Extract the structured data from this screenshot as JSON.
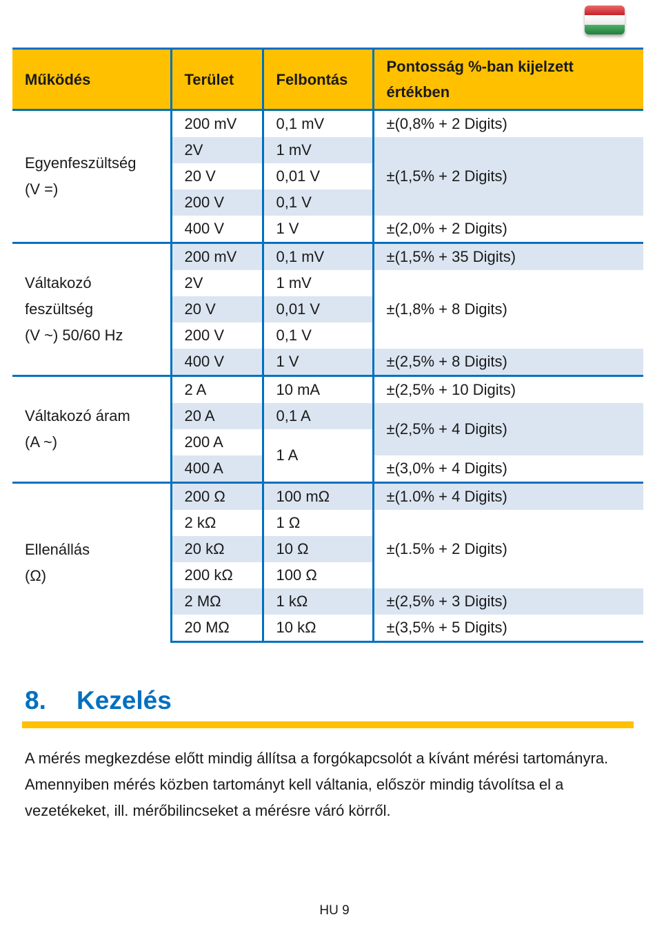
{
  "flag_icon": "hungarian-flag-icon",
  "colors": {
    "header": "#ffc000",
    "border": "#0070c0",
    "shade": "#dbe5f1",
    "heading": "#0070c0"
  },
  "table": {
    "headers": [
      "Működés",
      "Terület",
      "Felbontás",
      "Pontosság %-ban kijelzett értékben"
    ],
    "groups": [
      {
        "function": [
          "Egyenfeszültség",
          "(V =)"
        ],
        "ranges": [
          "200 mV",
          "2V",
          "20 V",
          "200 V",
          "400 V"
        ],
        "resolutions": [
          "0,1 mV",
          "1 mV",
          "0,01 V",
          "0,1 V",
          "1 V"
        ],
        "accuracies": [
          "±(0,8% + 2 Digits)",
          "±(1,5% + 2 Digits)",
          "±(2,0% + 2 Digits)"
        ]
      },
      {
        "function": [
          "Váltakozó",
          "feszültség",
          "(V  ~) 50/60 Hz"
        ],
        "ranges": [
          "200 mV",
          "2V",
          "20 V",
          "200 V",
          "400 V"
        ],
        "resolutions": [
          "0,1 mV",
          "1 mV",
          "0,01 V",
          "0,1 V",
          "1 V"
        ],
        "accuracies": [
          "±(1,5% + 35 Digits)",
          "±(1,8% + 8 Digits)",
          "±(2,5% + 8 Digits)"
        ]
      },
      {
        "function": [
          "Váltakozó áram",
          "(A ~)"
        ],
        "ranges": [
          "2 A",
          "20 A",
          "200 A",
          "400 A"
        ],
        "resolutions": [
          "10 mA",
          "0,1 A",
          "1 A"
        ],
        "accuracies": [
          "±(2,5% + 10 Digits)",
          "±(2,5% + 4 Digits)",
          "±(3,0% + 4 Digits)"
        ]
      },
      {
        "function": [
          "Ellenállás",
          "(Ω)"
        ],
        "ranges": [
          "200 Ω",
          "2 kΩ",
          "20 kΩ",
          "200 kΩ",
          "2 MΩ",
          "20 MΩ"
        ],
        "resolutions": [
          "100 mΩ",
          "1 Ω",
          "10 Ω",
          "100 Ω",
          "1 kΩ",
          "10 kΩ"
        ],
        "accuracies": [
          "±(1.0% + 4 Digits)",
          "±(1.5% + 2 Digits)",
          "±(2,5% + 3 Digits)",
          "±(3,5% + 5 Digits)"
        ]
      }
    ]
  },
  "section": {
    "number": "8.",
    "title": "Kezelés",
    "body": "A mérés megkezdése előtt mindig állítsa a forgókapcsolót a kívánt mérési tartományra. Amennyiben mérés közben tartományt kell váltania, először mindig távolítsa el a vezetékeket, ill. mérőbilincseket a mérésre váró körről."
  },
  "footer": {
    "page_label": "HU 9"
  }
}
